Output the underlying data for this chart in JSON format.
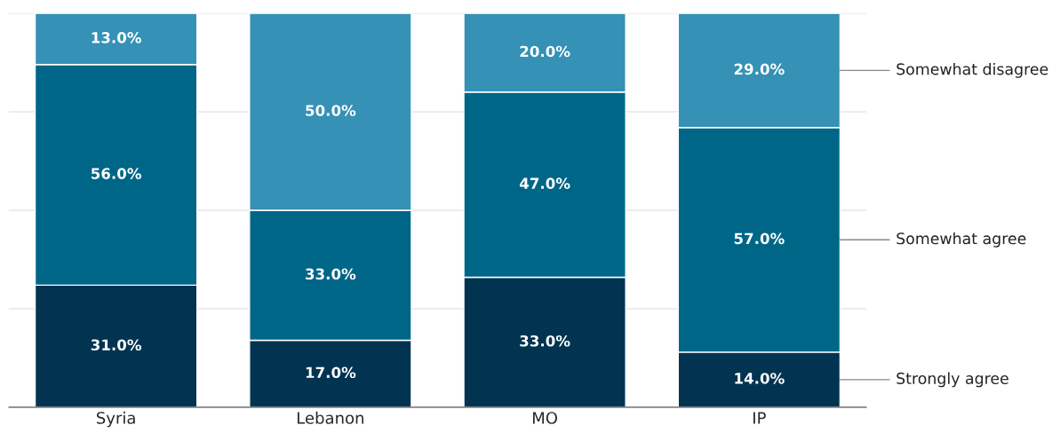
{
  "chart_data": {
    "type": "bar",
    "stacked": true,
    "categories": [
      "Syria",
      "Lebanon",
      "MO",
      "IP"
    ],
    "series": [
      {
        "name": "Strongly agree",
        "color": "#023451",
        "values": [
          31,
          17,
          33,
          14
        ],
        "value_labels": [
          "31.0%",
          "17.0%",
          "33.0%",
          "14.0%"
        ]
      },
      {
        "name": "Somewhat agree",
        "color": "#006688",
        "values": [
          56,
          33,
          47,
          57
        ],
        "value_labels": [
          "56.0%",
          "33.0%",
          "47.0%",
          "57.0%"
        ]
      },
      {
        "name": "Somewhat disagree",
        "color": "#3591b5",
        "values": [
          13,
          50,
          20,
          29
        ],
        "value_labels": [
          "13.0%",
          "50.0%",
          "20.0%",
          "29.0%"
        ]
      }
    ],
    "ylim": [
      0,
      100
    ],
    "yticks": [
      {
        "value": 0,
        "label": null
      },
      {
        "value": 25,
        "label": null
      },
      {
        "value": 50,
        "label": null
      },
      {
        "value": 75,
        "label": null
      },
      {
        "value": 100,
        "label": null
      }
    ],
    "grid": "y",
    "tick_labels": "x"
  }
}
